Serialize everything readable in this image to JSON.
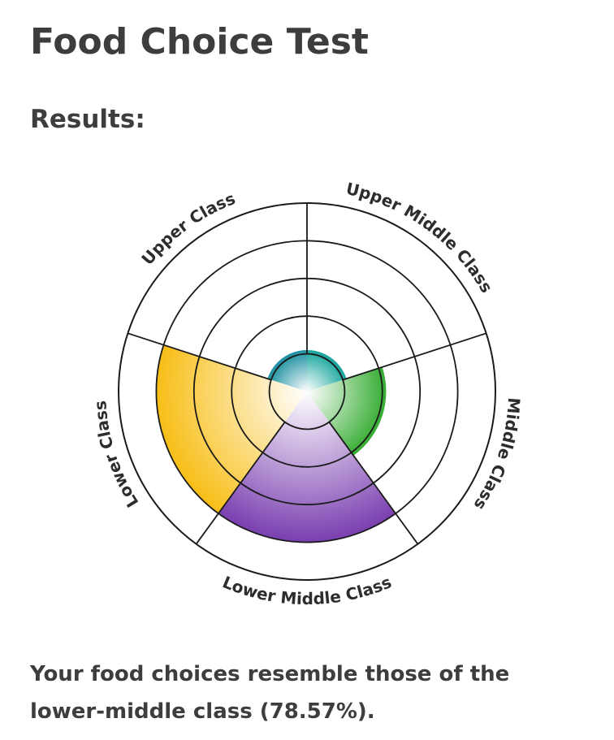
{
  "page": {
    "title": "Food Choice Test",
    "subtitle": "Results:",
    "result_text": "Your food choices resemble those of the lower-middle class (78.57%)."
  },
  "chart_data": {
    "type": "polar-area",
    "categories": [
      "Upper Class",
      "Upper Middle Class",
      "Middle Class",
      "Lower Middle Class",
      "Lower Class"
    ],
    "values": [
      1.1,
      1.1,
      2.1,
      4.0,
      4.0
    ],
    "rmax": 5,
    "rings": 5,
    "colors": [
      "#1a8fa0",
      "#13a49c",
      "#35ac32",
      "#7a3fb0",
      "#f8be16"
    ]
  }
}
